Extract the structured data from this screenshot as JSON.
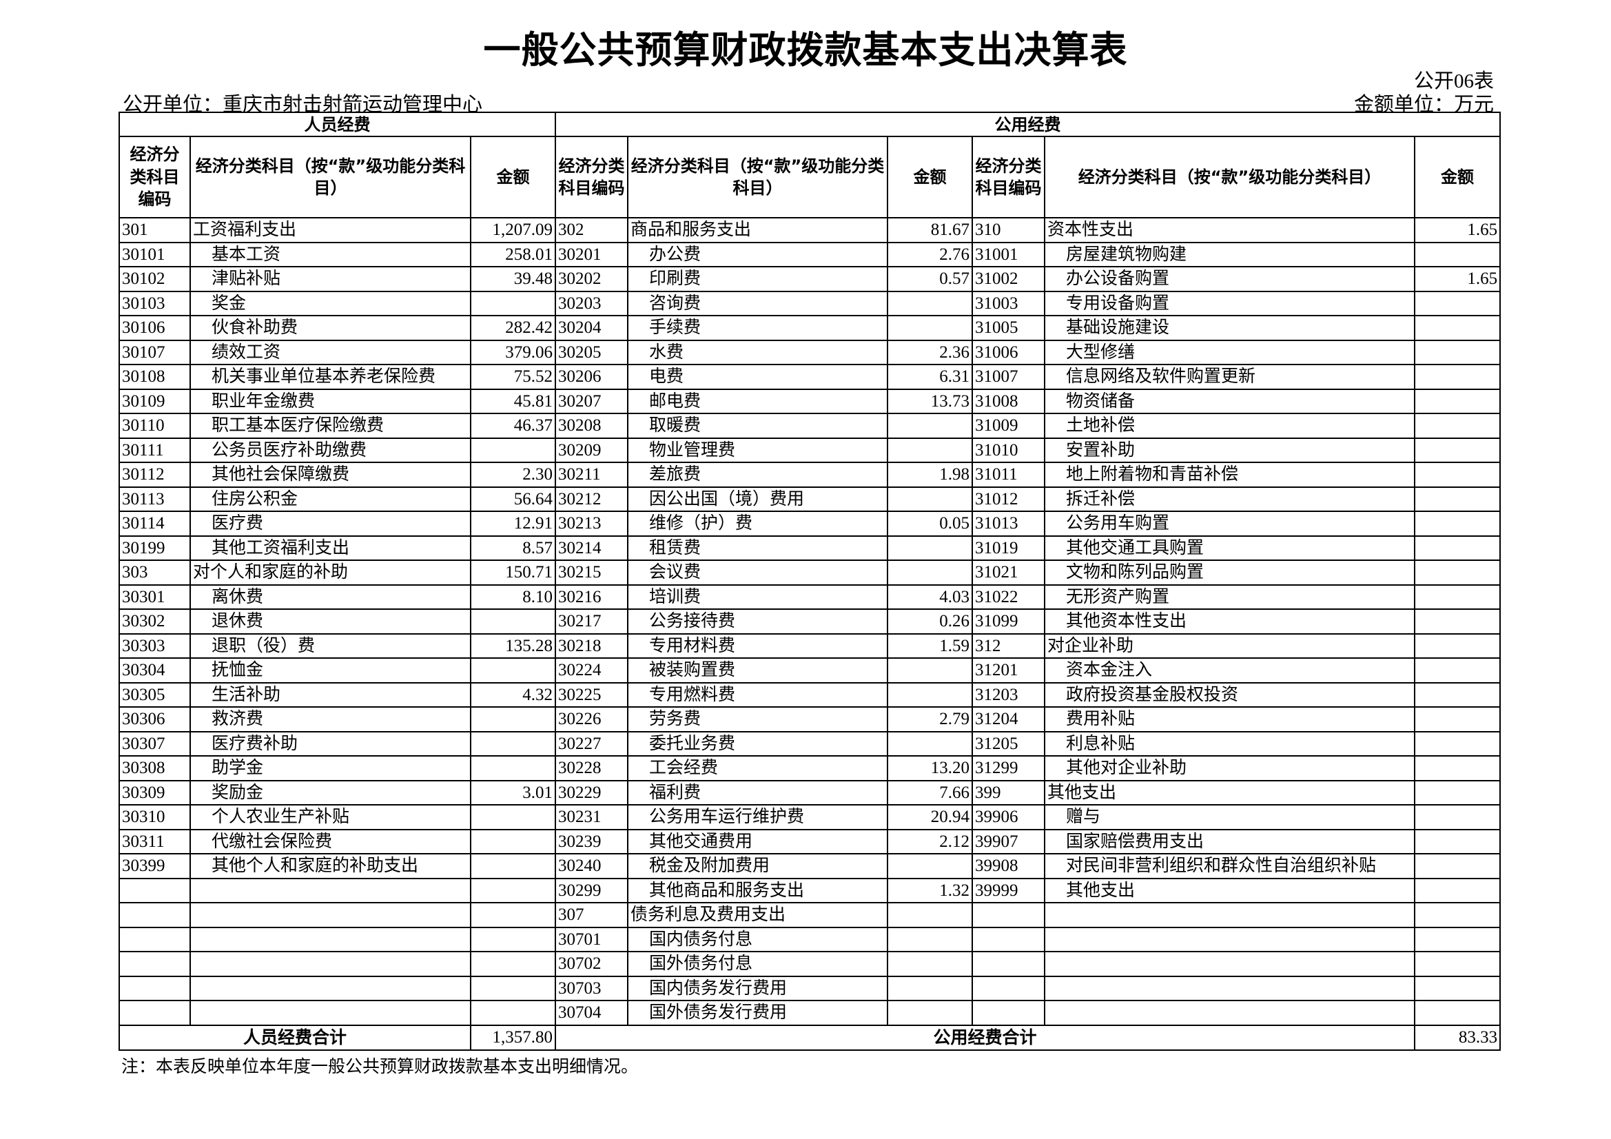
{
  "title": "一般公共预算财政拨款基本支出决算表",
  "form_no": "公开06表",
  "unit": "公开单位：重庆市射击射箭运动管理中心",
  "money_unit": "金额单位：万元",
  "header": {
    "personnel": "人员经费",
    "public": "公用经费",
    "code": "经济分类科目编码",
    "name_personnel": "经济分类科目（按“款”级功能分类科目）",
    "name_public1": "经济分类科目（按“款”级功能分类科目）",
    "name_public2": "经济分类科目（按“款”级功能分类科目）",
    "amount": "金额"
  },
  "rows": [
    [
      "301",
      "工资福利支出",
      "1,207.09",
      "302",
      "商品和服务支出",
      "81.67",
      "310",
      "资本性支出",
      "1.65"
    ],
    [
      "30101",
      "基本工资",
      "258.01",
      "30201",
      "办公费",
      "2.76",
      "31001",
      "房屋建筑物购建",
      ""
    ],
    [
      "30102",
      "津贴补贴",
      "39.48",
      "30202",
      "印刷费",
      "0.57",
      "31002",
      "办公设备购置",
      "1.65"
    ],
    [
      "30103",
      "奖金",
      "",
      "30203",
      "咨询费",
      "",
      "31003",
      "专用设备购置",
      ""
    ],
    [
      "30106",
      "伙食补助费",
      "282.42",
      "30204",
      "手续费",
      "",
      "31005",
      "基础设施建设",
      ""
    ],
    [
      "30107",
      "绩效工资",
      "379.06",
      "30205",
      "水费",
      "2.36",
      "31006",
      "大型修缮",
      ""
    ],
    [
      "30108",
      "机关事业单位基本养老保险费",
      "75.52",
      "30206",
      "电费",
      "6.31",
      "31007",
      "信息网络及软件购置更新",
      ""
    ],
    [
      "30109",
      "职业年金缴费",
      "45.81",
      "30207",
      "邮电费",
      "13.73",
      "31008",
      "物资储备",
      ""
    ],
    [
      "30110",
      "职工基本医疗保险缴费",
      "46.37",
      "30208",
      "取暖费",
      "",
      "31009",
      "土地补偿",
      ""
    ],
    [
      "30111",
      "公务员医疗补助缴费",
      "",
      "30209",
      "物业管理费",
      "",
      "31010",
      "安置补助",
      ""
    ],
    [
      "30112",
      "其他社会保障缴费",
      "2.30",
      "30211",
      "差旅费",
      "1.98",
      "31011",
      "地上附着物和青苗补偿",
      ""
    ],
    [
      "30113",
      "住房公积金",
      "56.64",
      "30212",
      "因公出国（境）费用",
      "",
      "31012",
      "拆迁补偿",
      ""
    ],
    [
      "30114",
      "医疗费",
      "12.91",
      "30213",
      "维修（护）费",
      "0.05",
      "31013",
      "公务用车购置",
      ""
    ],
    [
      "30199",
      "其他工资福利支出",
      "8.57",
      "30214",
      "租赁费",
      "",
      "31019",
      "其他交通工具购置",
      ""
    ],
    [
      "303",
      "对个人和家庭的补助",
      "150.71",
      "30215",
      "会议费",
      "",
      "31021",
      "文物和陈列品购置",
      ""
    ],
    [
      "30301",
      "离休费",
      "8.10",
      "30216",
      "培训费",
      "4.03",
      "31022",
      "无形资产购置",
      ""
    ],
    [
      "30302",
      "退休费",
      "",
      "30217",
      "公务接待费",
      "0.26",
      "31099",
      "其他资本性支出",
      ""
    ],
    [
      "30303",
      "退职（役）费",
      "135.28",
      "30218",
      "专用材料费",
      "1.59",
      "312",
      "对企业补助",
      ""
    ],
    [
      "30304",
      "抚恤金",
      "",
      "30224",
      "被装购置费",
      "",
      "31201",
      "资本金注入",
      ""
    ],
    [
      "30305",
      "生活补助",
      "4.32",
      "30225",
      "专用燃料费",
      "",
      "31203",
      "政府投资基金股权投资",
      ""
    ],
    [
      "30306",
      "救济费",
      "",
      "30226",
      "劳务费",
      "2.79",
      "31204",
      "费用补贴",
      ""
    ],
    [
      "30307",
      "医疗费补助",
      "",
      "30227",
      "委托业务费",
      "",
      "31205",
      "利息补贴",
      ""
    ],
    [
      "30308",
      "助学金",
      "",
      "30228",
      "工会经费",
      "13.20",
      "31299",
      "其他对企业补助",
      ""
    ],
    [
      "30309",
      "奖励金",
      "3.01",
      "30229",
      "福利费",
      "7.66",
      "399",
      "其他支出",
      ""
    ],
    [
      "30310",
      "个人农业生产补贴",
      "",
      "30231",
      "公务用车运行维护费",
      "20.94",
      "39906",
      "赠与",
      ""
    ],
    [
      "30311",
      "代缴社会保险费",
      "",
      "30239",
      "其他交通费用",
      "2.12",
      "39907",
      "国家赔偿费用支出",
      ""
    ],
    [
      "30399",
      "其他个人和家庭的补助支出",
      "",
      "30240",
      "税金及附加费用",
      "",
      "39908",
      "对民间非营利组织和群众性自治组织补贴",
      ""
    ],
    [
      "",
      "",
      "",
      "30299",
      "其他商品和服务支出",
      "1.32",
      "39999",
      "其他支出",
      ""
    ],
    [
      "",
      "",
      "",
      "307",
      "债务利息及费用支出",
      "",
      "",
      "",
      ""
    ],
    [
      "",
      "",
      "",
      "30701",
      "国内债务付息",
      "",
      "",
      "",
      ""
    ],
    [
      "",
      "",
      "",
      "30702",
      "国外债务付息",
      "",
      "",
      "",
      ""
    ],
    [
      "",
      "",
      "",
      "30703",
      "国内债务发行费用",
      "",
      "",
      "",
      ""
    ],
    [
      "",
      "",
      "",
      "30704",
      "国外债务发行费用",
      "",
      "",
      "",
      ""
    ]
  ],
  "totals": {
    "personnel_label": "人员经费合计",
    "personnel_amount": "1,357.80",
    "public_label": "公用经费合计",
    "public_amount": "83.33"
  },
  "note": "注：本表反映单位本年度一般公共预算财政拨款基本支出明细情况。"
}
